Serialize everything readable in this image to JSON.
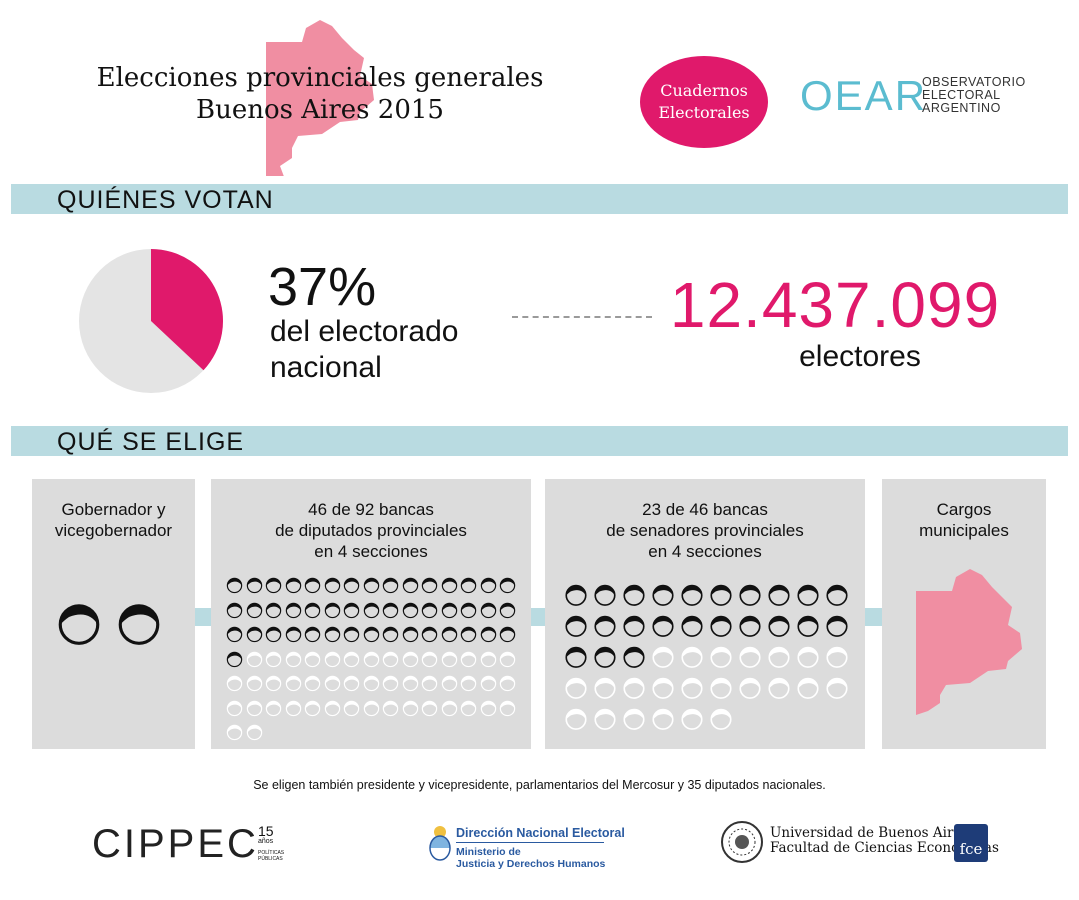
{
  "header": {
    "title_line1": "Elecciones provinciales generales",
    "title_line2": "Buenos Aires 2015",
    "badge_line1": "Cuadernos",
    "badge_line2": "Electorales",
    "oear_logo": "OEAR",
    "oear_line1": "OBSERVATORIO",
    "oear_line2": "ELECTORAL",
    "oear_line3": "ARGENTINO"
  },
  "colors": {
    "accent": "#e0196b",
    "band": "#b9dbe1",
    "panel": "#dcdcdc",
    "map": "#f08ea2",
    "pie_rest": "#e4e4e4"
  },
  "who_votes": {
    "section_title": "QUIÉNES VOTAN",
    "percent": "37%",
    "percent_value": 37,
    "percent_label_line1": "del electorado",
    "percent_label_line2": "nacional",
    "electors": "12.437.099",
    "electors_label": "electores"
  },
  "what_elected": {
    "section_title": "QUÉ SE ELIGE",
    "panels": [
      {
        "title_lines": [
          "Gobernador y",
          "vicegobernador"
        ],
        "elected": 2,
        "total": 2,
        "icon": "person-head-icon"
      },
      {
        "title_lines": [
          "46 de 92 bancas",
          "de diputados provinciales",
          "en 4 secciones"
        ],
        "elected": 46,
        "total": 92,
        "icon": "person-head-icon"
      },
      {
        "title_lines": [
          "23 de 46 bancas",
          "de senadores provinciales",
          "en 4 secciones"
        ],
        "elected": 23,
        "total": 46,
        "icon": "person-head-icon"
      },
      {
        "title_lines": [
          "Cargos",
          "municipales"
        ],
        "icon": "province-map-icon"
      }
    ]
  },
  "footnote": "Se eligen también presidente y vicepresidente, parlamentarios del Mercosur y 35 diputados nacionales.",
  "footer": {
    "cippec": "CIPPEC",
    "cippec_years": "15",
    "cippec_years_word": "años",
    "cippec_sub1": "POLÍTICAS",
    "cippec_sub2": "PÚBLICAS",
    "dne_title": "Dirección Nacional Electoral",
    "dne_sub1": "Ministerio de",
    "dne_sub2": "Justicia y Derechos Humanos",
    "uba_line1": "Universidad de Buenos Aires",
    "uba_line2": "Facultad de Ciencias Económicas",
    "fce_logo": "fce"
  }
}
